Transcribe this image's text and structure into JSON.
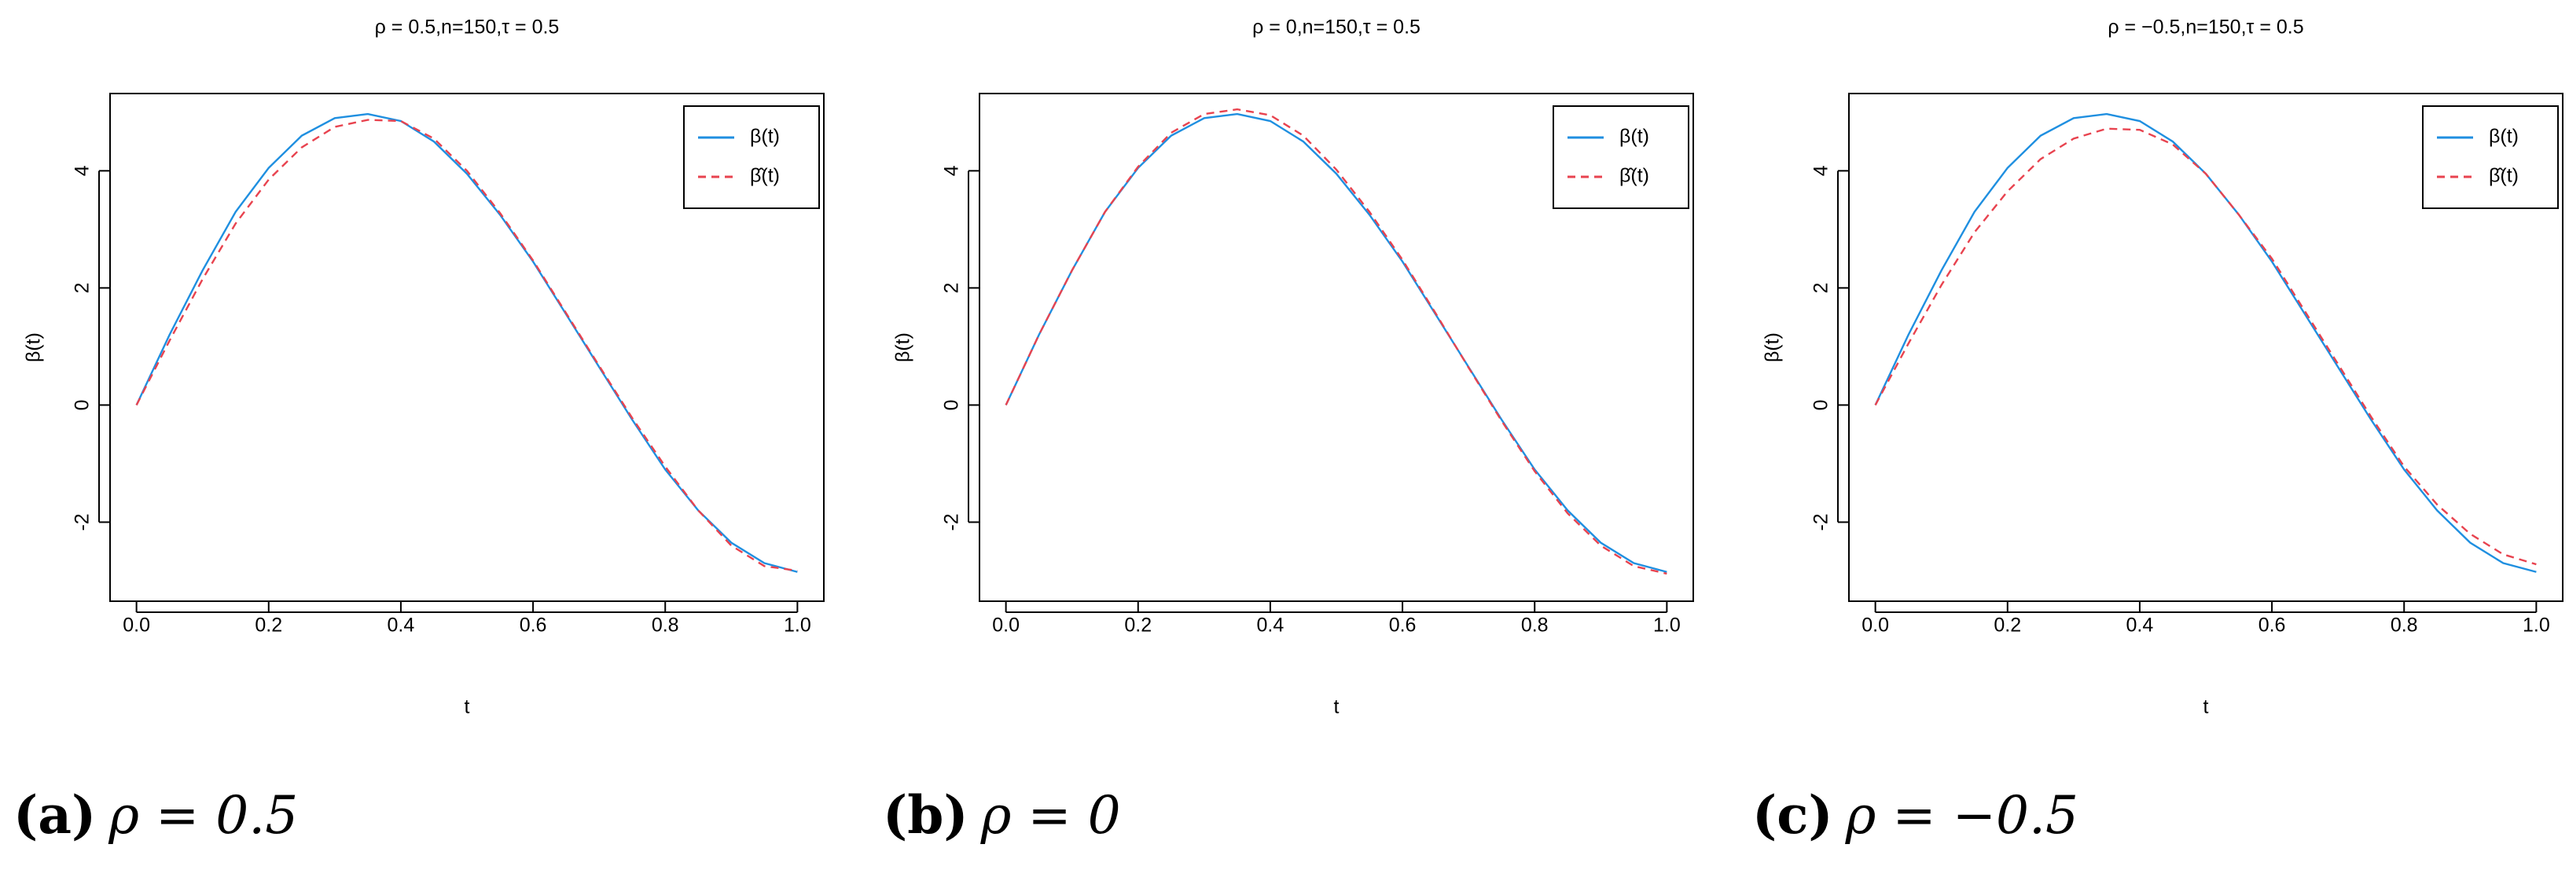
{
  "chart_data": [
    {
      "type": "line",
      "title": "ρ = 0.5,n=150,τ = 0.5",
      "xlabel": "t",
      "ylabel": "β(t)",
      "caption_tag": "(a)",
      "caption": "ρ = 0.5",
      "x": [
        0,
        0.05,
        0.1,
        0.15,
        0.2,
        0.25,
        0.3,
        0.35,
        0.4,
        0.45,
        0.5,
        0.55,
        0.6,
        0.65,
        0.7,
        0.75,
        0.8,
        0.85,
        0.9,
        0.95,
        1
      ],
      "series": [
        {
          "name": "β(t)",
          "color": "#1f8fe0",
          "linestyle": "solid",
          "values": [
            0,
            1.2,
            2.3,
            3.3,
            4.05,
            4.6,
            4.9,
            4.97,
            4.85,
            4.5,
            3.95,
            3.25,
            2.45,
            1.55,
            0.65,
            -0.25,
            -1.1,
            -1.8,
            -2.35,
            -2.7,
            -2.85
          ]
        },
        {
          "name": "β̂(t)",
          "color": "#e8434f",
          "linestyle": "dashed",
          "values": [
            0,
            1.1,
            2.15,
            3.1,
            3.85,
            4.4,
            4.75,
            4.87,
            4.85,
            4.55,
            4.0,
            3.28,
            2.47,
            1.57,
            0.67,
            -0.22,
            -1.05,
            -1.8,
            -2.4,
            -2.75,
            -2.83
          ]
        }
      ],
      "xlim": [
        -0.04,
        1.04
      ],
      "ylim": [
        -3.35,
        5.32
      ],
      "xticks": [
        {
          "value": 0,
          "label": "0.0"
        },
        0.2,
        0.4,
        0.6,
        0.8,
        {
          "value": 1,
          "label": "1.0"
        }
      ],
      "yticks": [
        -2,
        0,
        2,
        4
      ],
      "legend": "topright"
    },
    {
      "type": "line",
      "title": "ρ = 0,n=150,τ = 0.5",
      "xlabel": "t",
      "ylabel": "β(t)",
      "caption_tag": "(b)",
      "caption": "ρ = 0",
      "x": [
        0,
        0.05,
        0.1,
        0.15,
        0.2,
        0.25,
        0.3,
        0.35,
        0.4,
        0.45,
        0.5,
        0.55,
        0.6,
        0.65,
        0.7,
        0.75,
        0.8,
        0.85,
        0.9,
        0.95,
        1
      ],
      "series": [
        {
          "name": "β(t)",
          "color": "#1f8fe0",
          "linestyle": "solid",
          "values": [
            0,
            1.2,
            2.3,
            3.3,
            4.05,
            4.6,
            4.9,
            4.97,
            4.85,
            4.5,
            3.95,
            3.25,
            2.45,
            1.55,
            0.65,
            -0.25,
            -1.1,
            -1.8,
            -2.35,
            -2.7,
            -2.85
          ]
        },
        {
          "name": "β̂(t)",
          "color": "#e8434f",
          "linestyle": "dashed",
          "values": [
            0,
            1.2,
            2.3,
            3.3,
            4.07,
            4.65,
            4.97,
            5.05,
            4.95,
            4.6,
            4.02,
            3.3,
            2.48,
            1.57,
            0.64,
            -0.27,
            -1.13,
            -1.85,
            -2.4,
            -2.75,
            -2.88
          ]
        }
      ],
      "xlim": [
        -0.04,
        1.04
      ],
      "ylim": [
        -3.35,
        5.32
      ],
      "xticks": [
        {
          "value": 0,
          "label": "0.0"
        },
        0.2,
        0.4,
        0.6,
        0.8,
        {
          "value": 1,
          "label": "1.0"
        }
      ],
      "yticks": [
        -2,
        0,
        2,
        4
      ],
      "legend": "topright"
    },
    {
      "type": "line",
      "title": "ρ = −0.5,n=150,τ = 0.5",
      "xlabel": "t",
      "ylabel": "β(t)",
      "caption_tag": "(c)",
      "caption": "ρ = −0.5",
      "x": [
        0,
        0.05,
        0.1,
        0.15,
        0.2,
        0.25,
        0.3,
        0.35,
        0.4,
        0.45,
        0.5,
        0.55,
        0.6,
        0.65,
        0.7,
        0.75,
        0.8,
        0.85,
        0.9,
        0.95,
        1
      ],
      "series": [
        {
          "name": "β(t)",
          "color": "#1f8fe0",
          "linestyle": "solid",
          "values": [
            0,
            1.2,
            2.3,
            3.3,
            4.05,
            4.6,
            4.9,
            4.97,
            4.85,
            4.5,
            3.95,
            3.25,
            2.45,
            1.55,
            0.65,
            -0.25,
            -1.1,
            -1.8,
            -2.35,
            -2.7,
            -2.85
          ]
        },
        {
          "name": "β̂(t)",
          "color": "#e8434f",
          "linestyle": "dashed",
          "values": [
            0,
            1.05,
            2.05,
            2.95,
            3.65,
            4.2,
            4.55,
            4.72,
            4.7,
            4.45,
            3.95,
            3.25,
            2.5,
            1.6,
            0.7,
            -0.2,
            -1.05,
            -1.7,
            -2.2,
            -2.55,
            -2.72
          ]
        }
      ],
      "xlim": [
        -0.04,
        1.04
      ],
      "ylim": [
        -3.35,
        5.32
      ],
      "xticks": [
        {
          "value": 0,
          "label": "0.0"
        },
        0.2,
        0.4,
        0.6,
        0.8,
        {
          "value": 1,
          "label": "1.0"
        }
      ],
      "yticks": [
        -2,
        0,
        2,
        4
      ],
      "legend": "topright"
    }
  ]
}
